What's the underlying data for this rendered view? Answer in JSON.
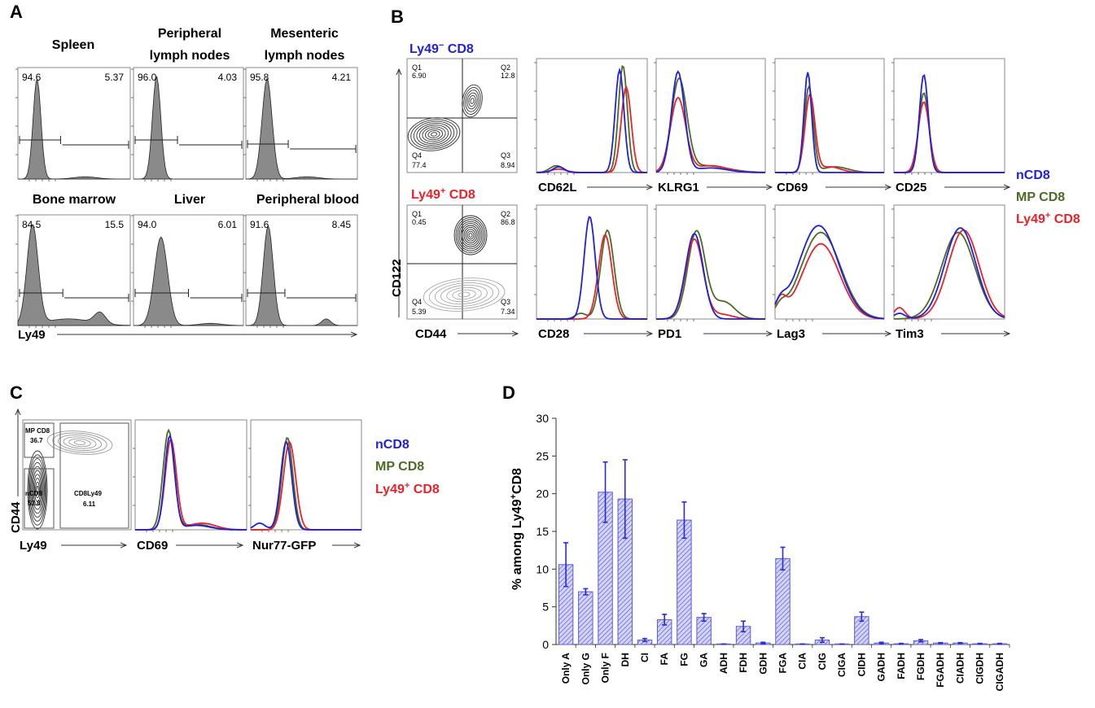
{
  "panel_labels": [
    "A",
    "B",
    "C",
    "D"
  ],
  "panelA": {
    "axis_label": "Ly49",
    "tissues": [
      {
        "title": [
          "Spleen"
        ],
        "left": "94.6",
        "right": "5.37"
      },
      {
        "title": [
          "Peripheral",
          "lymph nodes"
        ],
        "left": "96.0",
        "right": "4.03"
      },
      {
        "title": [
          "Mesenteric",
          "lymph nodes"
        ],
        "left": "95.8",
        "right": "4.21"
      },
      {
        "title": [
          "Bone marrow"
        ],
        "left": "84.5",
        "right": "15.5"
      },
      {
        "title": [
          "Liver"
        ],
        "left": "94.0",
        "right": "6.01"
      },
      {
        "title": [
          "Peripheral blood"
        ],
        "left": "91.6",
        "right": "8.45"
      }
    ]
  },
  "panelB": {
    "ylabel": "CD122",
    "xlabel": "CD44",
    "contours": [
      {
        "title_pre": "Ly49",
        "title_sup": "−",
        "title_post": " CD8",
        "color": "#1f1fdc",
        "q1": "Q1",
        "q1v": "6.90",
        "q2": "Q2",
        "q2v": "12.8",
        "q3": "Q3",
        "q3v": "8.94",
        "q4": "Q4",
        "q4v": "77.4"
      },
      {
        "title_pre": "Ly49",
        "title_sup": "+",
        "title_post": " CD8",
        "color": "#e8232a",
        "q1": "Q1",
        "q1v": "0.45",
        "q2": "Q2",
        "q2v": "86.8",
        "q3": "Q3",
        "q3v": "7.34",
        "q4": "Q4",
        "q4v": "5.39"
      }
    ],
    "markers_row1": [
      "CD62L",
      "KLRG1",
      "CD69",
      "CD25"
    ],
    "markers_row2": [
      "CD28",
      "PD1",
      "Lag3",
      "Tim3"
    ],
    "legend": [
      {
        "label": "nCD8",
        "color": "#1f1fdc"
      },
      {
        "label": "MP CD8",
        "color": "#4e6b25"
      },
      {
        "label_pre": "Ly49",
        "label_sup": "+",
        "label_post": " CD8",
        "color": "#e8232a"
      }
    ]
  },
  "panelC": {
    "ylabel": "CD44",
    "xlabel": "Ly49",
    "gates": [
      {
        "name": "MP CD8",
        "value": "36.7"
      },
      {
        "name": "nCD8",
        "value": "53.8"
      },
      {
        "name": "CD8Ly49",
        "value": "6.11"
      }
    ],
    "markers": [
      "CD69",
      "Nur77-GFP"
    ],
    "legend": [
      {
        "label": "nCD8",
        "color": "#1f1fdc"
      },
      {
        "label": "MP CD8",
        "color": "#4e6b25"
      },
      {
        "label_pre": "Ly49",
        "label_sup": "+",
        "label_post": " CD8",
        "color": "#e8232a"
      }
    ]
  },
  "chart_data": [
    {
      "type": "bar",
      "panel": "D",
      "ylabel_pre": "% among Ly49",
      "ylabel_sup": "+",
      "ylabel_post": "CD8",
      "xlabel": "",
      "ylim": [
        0,
        30
      ],
      "yticks": [
        "0",
        "5",
        "10",
        "15",
        "20",
        "25",
        "30"
      ],
      "categories": [
        "Only A",
        "Only G",
        "Only F",
        "DH",
        "CI",
        "FA",
        "FG",
        "GA",
        "ADH",
        "FDH",
        "GDH",
        "FGA",
        "CIA",
        "CIG",
        "CIGA",
        "CIDH",
        "GADH",
        "FADH",
        "FGDH",
        "FGADH",
        "CIADH",
        "CIGDH",
        "CIGADH"
      ],
      "values": [
        10.6,
        7.0,
        20.2,
        19.3,
        0.6,
        3.3,
        16.5,
        3.6,
        0.05,
        2.4,
        0.2,
        11.4,
        0.05,
        0.6,
        0.05,
        3.7,
        0.2,
        0.1,
        0.5,
        0.2,
        0.2,
        0.1,
        0.1
      ],
      "errors": [
        2.9,
        0.4,
        4.0,
        5.2,
        0.2,
        0.7,
        2.4,
        0.5,
        0.02,
        0.7,
        0.1,
        1.5,
        0.02,
        0.3,
        0.02,
        0.6,
        0.1,
        0.05,
        0.15,
        0.05,
        0.05,
        0.05,
        0.05
      ],
      "bar_color": "#5b5bdc",
      "error_color": "#2a2ad8"
    }
  ]
}
